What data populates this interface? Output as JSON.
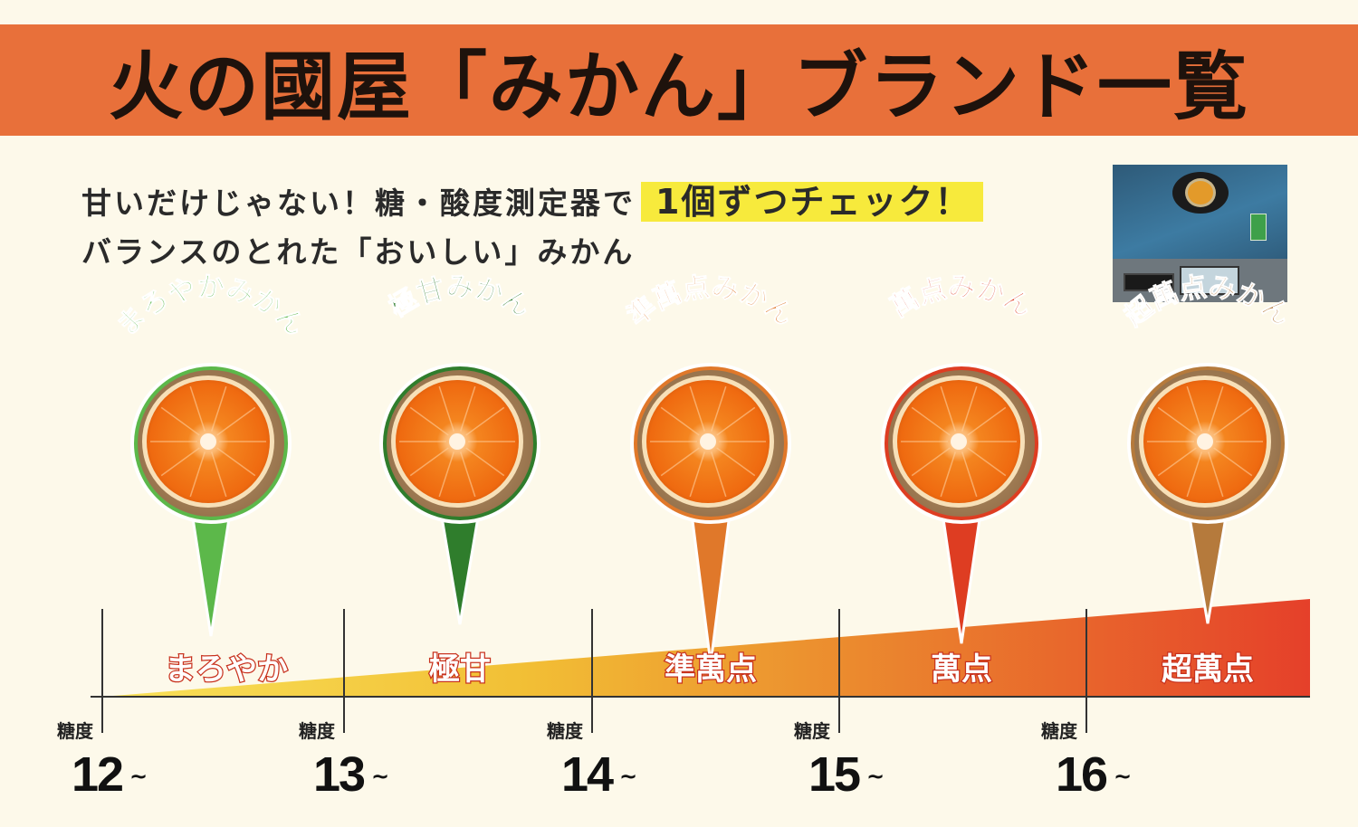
{
  "title": "火の國屋「みかん」ブランド一覧",
  "intro": {
    "line1": "甘いだけじゃない！糖・酸度測定器で",
    "highlight": "1個ずつチェック！",
    "line2": "バランスのとれた「おいしい」みかん"
  },
  "brands": [
    {
      "name": "まろやかみかん",
      "grade": "まろやか",
      "color": "#5cb84a",
      "brix_from": 12
    },
    {
      "name": "極甘みかん",
      "grade": "極甘",
      "color": "#2f7d2c",
      "brix_from": 13
    },
    {
      "name": "準萬点みかん",
      "grade": "準萬点",
      "color": "#e0782a",
      "brix_from": 14
    },
    {
      "name": "萬点みかん",
      "grade": "萬点",
      "color": "#de3d22",
      "brix_from": 15
    },
    {
      "name": "超萬点みかん",
      "grade": "超萬点",
      "color": "#b57a3c",
      "brix_from": 16
    }
  ],
  "scale": {
    "label": "糖度",
    "ticks": [
      "12",
      "13",
      "14",
      "15",
      "16"
    ],
    "suffix": "~"
  }
}
